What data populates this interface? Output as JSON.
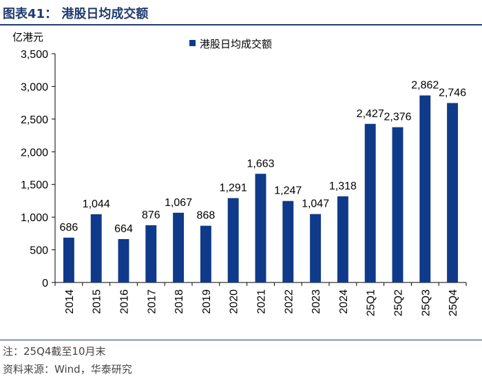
{
  "figure": {
    "title": "图表41：  港股日均成交额",
    "note": "注：25Q4截至10月末",
    "source": "资料来源：Wind，华泰研究"
  },
  "chart_data": {
    "type": "bar",
    "title": "港股日均成交额",
    "ylabel": "亿港元",
    "xlabel": "",
    "categories": [
      "2014",
      "2015",
      "2016",
      "2017",
      "2018",
      "2019",
      "2020",
      "2021",
      "2022",
      "2023",
      "2024",
      "25Q1",
      "25Q2",
      "25Q3",
      "25Q4"
    ],
    "series": [
      {
        "name": "港股日均成交额",
        "values": [
          686,
          1044,
          664,
          876,
          1067,
          868,
          1291,
          1663,
          1247,
          1047,
          1318,
          2427,
          2376,
          2862,
          2746
        ],
        "labels": [
          "686",
          "1,044",
          "664",
          "876",
          "1,067",
          "868",
          "1,291",
          "1,663",
          "1,247",
          "1,047",
          "1,318",
          "2,427",
          "2,376",
          "2,862",
          "2,746"
        ],
        "color": "#0f3a8a"
      }
    ],
    "ylim": [
      0,
      3500
    ],
    "yticks": [
      0,
      500,
      1000,
      1500,
      2000,
      2500,
      3000,
      3500
    ],
    "ytick_labels": [
      "0",
      "500",
      "1,000",
      "1,500",
      "2,000",
      "2,500",
      "3,000",
      "3,500"
    ],
    "legend": "top-center",
    "grid": false
  }
}
